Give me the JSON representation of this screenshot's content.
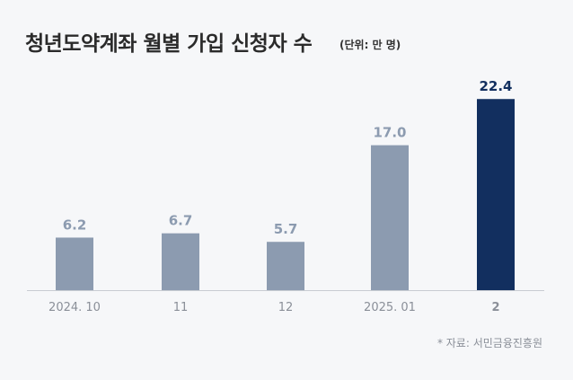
{
  "title": "청년도약계좌 월별 가입 신청자 수",
  "unit_note": "(단위: 만 명)",
  "source": "* 자료: 서민금융진흥원",
  "colors": {
    "bar_default": "#8c9bb0",
    "bar_highlight": "#122f5f",
    "label_default": "#8c9bb0",
    "label_highlight": "#122f5f",
    "axis": "#c8ccd2",
    "background": "#f6f7f9"
  },
  "chart_data": {
    "type": "bar",
    "categories": [
      "2024. 10",
      "11",
      "12",
      "2025. 01",
      "2"
    ],
    "values": [
      6.2,
      6.7,
      5.7,
      17.0,
      22.4
    ],
    "value_labels": [
      "6.2",
      "6.7",
      "5.7",
      "17.0",
      "22.4"
    ],
    "highlight_index": 4,
    "ylim": [
      0,
      24
    ],
    "grid": false,
    "legend": "none"
  }
}
